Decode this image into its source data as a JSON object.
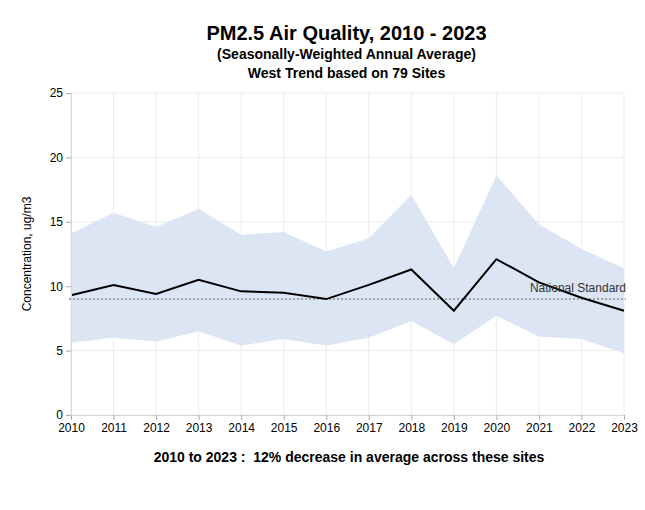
{
  "chart_data": {
    "type": "line",
    "title": "PM2.5 Air Quality, 2010 - 2023",
    "subtitle": [
      "(Seasonally-Weighted Annual Average)",
      "West Trend based on 79 Sites"
    ],
    "caption": "2010 to 2023 :  12% decrease in average across these sites",
    "y_label": "Concentration, ug/m3",
    "x": [
      2010,
      2011,
      2012,
      2013,
      2014,
      2015,
      2016,
      2017,
      2018,
      2019,
      2020,
      2021,
      2022,
      2023
    ],
    "series": [
      {
        "color": "#000000",
        "line_style": "solid",
        "values": [
          9.3,
          10.1,
          9.4,
          10.5,
          9.6,
          9.5,
          9.0,
          10.1,
          11.3,
          8.1,
          12.1,
          10.3,
          9.1,
          8.1
        ]
      }
    ],
    "band": {
      "color": "#dbe5f3",
      "upper": [
        14.1,
        15.7,
        14.6,
        16.0,
        14.0,
        14.2,
        12.7,
        13.7,
        17.1,
        11.4,
        18.6,
        14.8,
        12.9,
        11.4
      ],
      "lower": [
        5.6,
        6.0,
        5.7,
        6.5,
        5.4,
        5.9,
        5.4,
        6.0,
        7.3,
        5.5,
        7.7,
        6.1,
        5.9,
        4.8
      ]
    },
    "reference_line": {
      "value": 9,
      "label": "National Standard",
      "color": "#a0a0a0",
      "line_style": "dotted"
    },
    "xlim": [
      2010,
      2023
    ],
    "xticks": [
      2010,
      2011,
      2012,
      2013,
      2014,
      2015,
      2016,
      2017,
      2018,
      2019,
      2020,
      2021,
      2022,
      2023
    ],
    "ylim": [
      0,
      25
    ],
    "yticks": [
      0,
      5,
      10,
      15,
      20,
      25
    ],
    "grid": true
  }
}
